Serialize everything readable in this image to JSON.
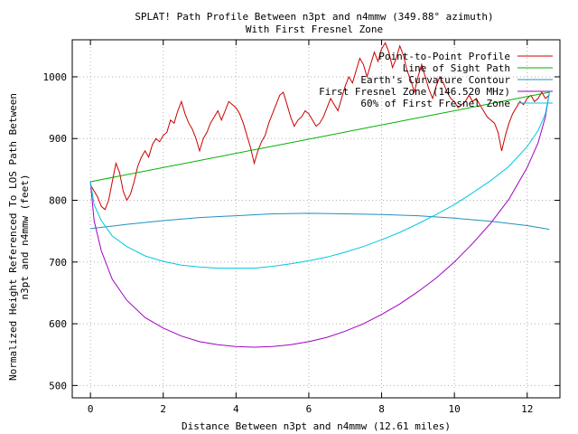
{
  "chart_data": {
    "type": "line",
    "title": "SPLAT! Path Profile Between n3pt and n4mmw (349.88° azimuth)",
    "subtitle": "With First Fresnel Zone",
    "xlabel": "Distance Between n3pt and n4mmw (12.61 miles)",
    "ylabel_lines": [
      "Normalized Height Referenced To LOS Path Between",
      "n3pt and n4mmw (feet)"
    ],
    "xlim": [
      -0.5,
      12.9
    ],
    "ylim": [
      480,
      1060
    ],
    "x_ticks": [
      0,
      2,
      4,
      6,
      8,
      10,
      12
    ],
    "y_ticks": [
      500,
      600,
      700,
      800,
      900,
      1000
    ],
    "grid": true,
    "legend_position": "top-right",
    "series": [
      {
        "name": "Point-to-Point Profile",
        "color": "#cc0000",
        "x": [
          0,
          0.1,
          0.2,
          0.3,
          0.4,
          0.5,
          0.6,
          0.7,
          0.8,
          0.9,
          1.0,
          1.1,
          1.2,
          1.3,
          1.4,
          1.5,
          1.6,
          1.7,
          1.8,
          1.9,
          2.0,
          2.1,
          2.2,
          2.3,
          2.4,
          2.5,
          2.6,
          2.7,
          2.8,
          2.9,
          3.0,
          3.1,
          3.2,
          3.3,
          3.4,
          3.5,
          3.6,
          3.7,
          3.8,
          3.9,
          4.0,
          4.1,
          4.2,
          4.3,
          4.4,
          4.5,
          4.6,
          4.7,
          4.8,
          4.9,
          5.0,
          5.1,
          5.2,
          5.3,
          5.4,
          5.5,
          5.6,
          5.7,
          5.8,
          5.9,
          6.0,
          6.1,
          6.2,
          6.3,
          6.4,
          6.5,
          6.6,
          6.7,
          6.8,
          6.9,
          7.0,
          7.1,
          7.2,
          7.3,
          7.4,
          7.5,
          7.6,
          7.7,
          7.8,
          7.9,
          8.0,
          8.1,
          8.2,
          8.3,
          8.4,
          8.5,
          8.6,
          8.7,
          8.8,
          8.9,
          9.0,
          9.1,
          9.2,
          9.3,
          9.4,
          9.5,
          9.6,
          9.7,
          9.8,
          9.9,
          10.0,
          10.1,
          10.2,
          10.3,
          10.4,
          10.5,
          10.6,
          10.7,
          10.8,
          10.9,
          11.0,
          11.1,
          11.2,
          11.3,
          11.4,
          11.5,
          11.6,
          11.7,
          11.8,
          11.9,
          12.0,
          12.1,
          12.2,
          12.3,
          12.4,
          12.5,
          12.6
        ],
        "y": [
          825,
          815,
          805,
          790,
          785,
          800,
          830,
          860,
          845,
          815,
          800,
          810,
          830,
          855,
          870,
          880,
          870,
          890,
          900,
          895,
          905,
          910,
          930,
          925,
          945,
          960,
          940,
          925,
          915,
          900,
          880,
          900,
          910,
          925,
          935,
          945,
          930,
          945,
          960,
          955,
          950,
          940,
          925,
          905,
          885,
          860,
          880,
          895,
          905,
          925,
          940,
          955,
          970,
          975,
          955,
          935,
          920,
          930,
          935,
          945,
          940,
          930,
          920,
          925,
          935,
          950,
          965,
          955,
          945,
          965,
          985,
          1000,
          990,
          1010,
          1030,
          1020,
          1000,
          1020,
          1040,
          1025,
          1045,
          1055,
          1040,
          1015,
          1030,
          1050,
          1035,
          1010,
          995,
          975,
          1000,
          1020,
          1000,
          980,
          965,
          985,
          1000,
          990,
          975,
          965,
          960,
          950,
          955,
          960,
          970,
          960,
          965,
          955,
          945,
          935,
          930,
          925,
          910,
          880,
          905,
          925,
          940,
          950,
          960,
          955,
          965,
          970,
          960,
          965,
          975,
          965,
          970
        ]
      },
      {
        "name": "Line of Sight Path",
        "color": "#00b000",
        "x": [
          0,
          12.61
        ],
        "y": [
          830,
          975
        ]
      },
      {
        "name": "Earth's Curvature Contour",
        "color": "#2090c0",
        "x": [
          0,
          1,
          2,
          3,
          4,
          5,
          6,
          7,
          8,
          9,
          10,
          11,
          12,
          12.61
        ],
        "y": [
          754,
          761,
          767,
          772,
          775,
          778,
          779,
          778,
          777,
          775,
          771,
          766,
          759,
          753
        ]
      },
      {
        "name": "First Fresnel Zone (146.520 MHz)",
        "color": "#a000c0",
        "x": [
          0,
          0.1,
          0.3,
          0.6,
          1,
          1.5,
          2,
          2.5,
          3,
          3.5,
          4,
          4.5,
          5,
          5.5,
          6,
          6.5,
          7,
          7.5,
          8,
          8.5,
          9,
          9.5,
          10,
          10.5,
          11,
          11.5,
          12,
          12.3,
          12.5,
          12.61
        ],
        "y": [
          830,
          767,
          718,
          672,
          638,
          610,
          593,
          580,
          571,
          566,
          563,
          562,
          563,
          566,
          571,
          578,
          588,
          600,
          615,
          632,
          652,
          674,
          700,
          730,
          763,
          802,
          853,
          893,
          935,
          975
        ]
      },
      {
        "name": "60% of First Fresnel Zone",
        "color": "#00c8e0",
        "x": [
          0,
          0.1,
          0.3,
          0.6,
          1,
          1.5,
          2,
          2.5,
          3,
          3.5,
          4,
          4.5,
          5,
          5.5,
          6,
          6.5,
          7,
          7.5,
          8,
          8.5,
          9,
          9.5,
          10,
          10.5,
          11,
          11.5,
          12,
          12.3,
          12.5,
          12.61
        ],
        "y": [
          830,
          793,
          767,
          742,
          725,
          710,
          701,
          695,
          692,
          690,
          690,
          690,
          693,
          697,
          702,
          708,
          716,
          725,
          736,
          748,
          762,
          777,
          793,
          812,
          832,
          855,
          887,
          913,
          940,
          975
        ]
      }
    ]
  }
}
